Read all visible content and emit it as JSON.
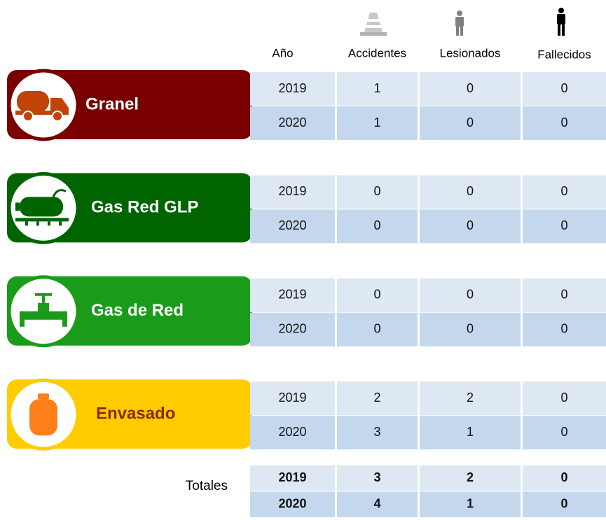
{
  "headers": [
    "Año",
    "Accidentes",
    "Lesionados",
    "Fallecidos"
  ],
  "groups": [
    {
      "label": "Granel",
      "color": "#7a0000",
      "rows": [
        [
          2019,
          1,
          0,
          0
        ],
        [
          2020,
          1,
          0,
          0
        ]
      ]
    },
    {
      "label": "Gas Red GLP",
      "color": "#006400",
      "rows": [
        [
          2019,
          0,
          0,
          0
        ],
        [
          2020,
          0,
          0,
          0
        ]
      ]
    },
    {
      "label": "Gas de Red",
      "color": "#1a9c1a",
      "rows": [
        [
          2019,
          0,
          0,
          0
        ],
        [
          2020,
          0,
          0,
          0
        ]
      ]
    },
    {
      "label": "Envasado",
      "color": "#ffcc00",
      "rows": [
        [
          2019,
          2,
          2,
          0
        ],
        [
          2020,
          3,
          1,
          0
        ]
      ]
    }
  ],
  "totals": {
    "label": "Totales",
    "rows": [
      [
        2019,
        3,
        2,
        0
      ],
      [
        2020,
        4,
        1,
        0
      ]
    ]
  }
}
